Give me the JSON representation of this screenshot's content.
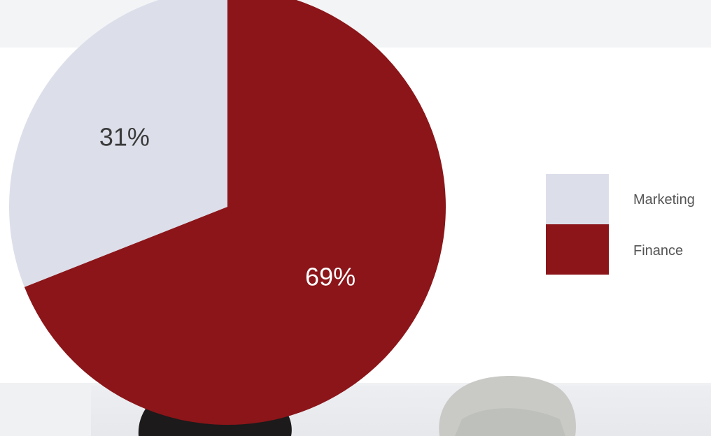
{
  "chart_data": {
    "type": "pie",
    "title": "",
    "slices": [
      {
        "label": "Marketing",
        "value": 31,
        "display": "31%",
        "color": "#dcdfea",
        "text_color": "#3a3a3a"
      },
      {
        "label": "Finance",
        "value": 69,
        "display": "69%",
        "color": "#8b1519",
        "text_color": "#ffffff"
      }
    ],
    "start_angle_deg": 0,
    "direction": "counterclockwise",
    "legend": {
      "position": "right",
      "entries": [
        {
          "label": "Marketing",
          "color": "#dcdfea"
        },
        {
          "label": "Finance",
          "color": "#8b1519"
        }
      ]
    }
  },
  "background": {
    "top_band_color": "#f3f4f6",
    "bottom_band_color": "#f0f1f3"
  },
  "photo": {
    "people": [
      {
        "icon": "person-dark-hair-icon",
        "hair_color": "#1c1a1a"
      },
      {
        "icon": "person-grey-hair-icon",
        "hair_color": "#c9cac6"
      }
    ]
  }
}
